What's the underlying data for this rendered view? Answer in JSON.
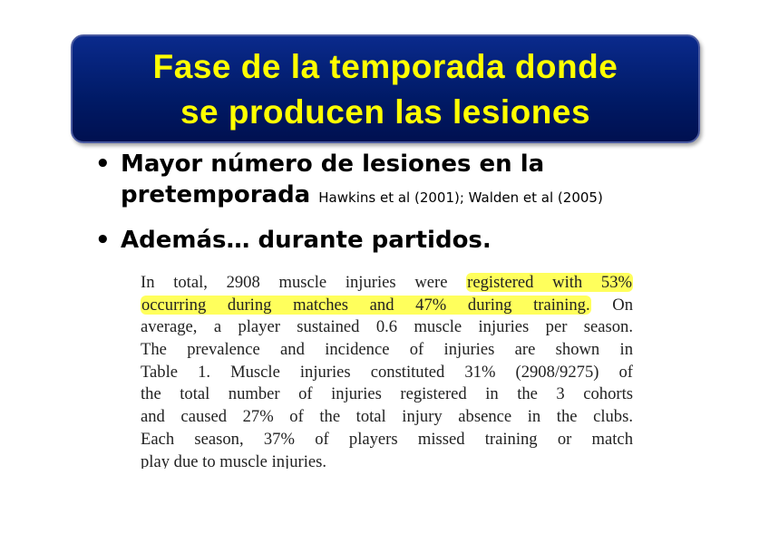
{
  "header": {
    "title_lines": [
      "Fase de la temporada donde",
      "se producen las lesiones"
    ]
  },
  "bullets": [
    {
      "lines": [
        "Mayor número de lesiones en la",
        "pretemporada"
      ],
      "citation": "Hawkins et al (2001); Walden et al (2005)"
    },
    {
      "lines": [
        "Además… durante partidos."
      ]
    }
  ],
  "excerpt": {
    "highlight_color": "#ffff5c",
    "lines": [
      [
        {
          "text": "In total, 2908 muscle injuries were ",
          "highlight": false
        },
        {
          "text": "registered with 53%",
          "highlight": true
        }
      ],
      [
        {
          "text": "occurring during matches and 47% during training.",
          "highlight": true
        },
        {
          "text": " On",
          "highlight": false
        }
      ],
      [
        {
          "text": "average, a player sustained 0.6 muscle injuries per season.",
          "highlight": false
        }
      ],
      [
        {
          "text": "The prevalence and incidence of injuries are shown in",
          "highlight": false
        }
      ],
      [
        {
          "text": "Table 1. Muscle injuries constituted 31% (2908/9275) of",
          "highlight": false
        }
      ],
      [
        {
          "text": "the total number of injuries registered in the 3 cohorts",
          "highlight": false
        }
      ],
      [
        {
          "text": "and caused 27% of the total injury absence in the clubs.",
          "highlight": false
        }
      ],
      [
        {
          "text": "Each season, 37% of players missed training or match",
          "highlight": false
        }
      ],
      [
        {
          "text": "play due to muscle injuries.",
          "highlight": false
        }
      ]
    ]
  }
}
